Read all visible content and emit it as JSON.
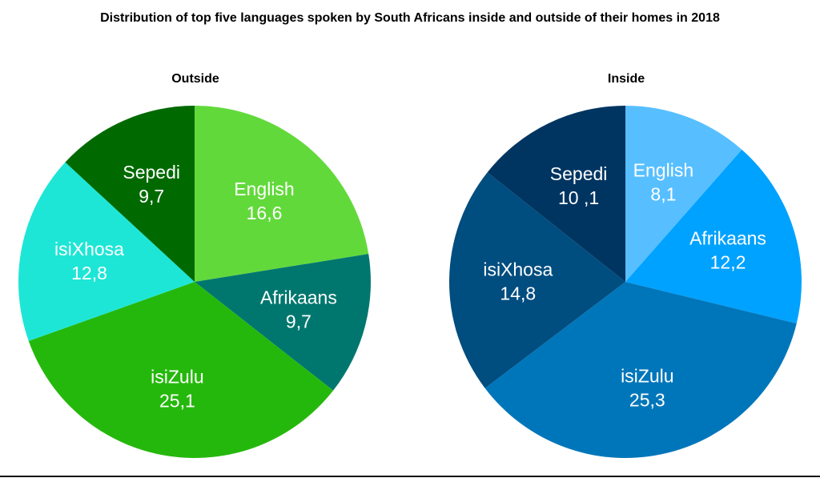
{
  "chart_data": {
    "type": "pie",
    "title": "Distribution of top five languages spoken by South Africans inside and outside of their homes in 2018",
    "pies": [
      {
        "title": "Outside",
        "slices": [
          {
            "label": "English",
            "value_text": "16,6",
            "value": 16.6,
            "color": "#62d93b"
          },
          {
            "label": "Afrikaans",
            "value_text": "9,7",
            "value": 9.7,
            "color": "#00776e"
          },
          {
            "label": "isiZulu",
            "value_text": "25,1",
            "value": 25.1,
            "color": "#25b80c"
          },
          {
            "label": "isiXhosa",
            "value_text": "12,8",
            "value": 12.8,
            "color": "#1ee6d6"
          },
          {
            "label": "Sepedi",
            "value_text": "9,7",
            "value": 9.7,
            "color": "#006a00"
          }
        ]
      },
      {
        "title": "Inside",
        "slices": [
          {
            "label": "English",
            "value_text": "8,1",
            "value": 8.1,
            "color": "#57bfff"
          },
          {
            "label": "Afrikaans",
            "value_text": "12,2",
            "value": 12.2,
            "color": "#00a2ff"
          },
          {
            "label": "isiZulu",
            "value_text": "25,3",
            "value": 25.3,
            "color": "#0076ba"
          },
          {
            "label": "isiXhosa",
            "value_text": "14,8",
            "value": 14.8,
            "color": "#004d7f"
          },
          {
            "label": "Sepedi",
            "value_text": "10 ,1",
            "value": 10.1,
            "color": "#003561"
          }
        ]
      }
    ]
  }
}
